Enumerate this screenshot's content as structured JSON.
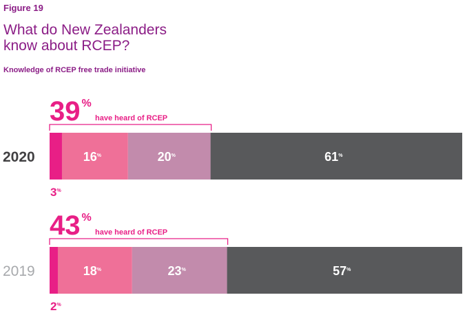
{
  "figure_label": "Figure 19",
  "figure_title_line1": "What do New Zealanders",
  "figure_title_line2": "know about RCEP?",
  "chart_title": "Knowledge of RCEP free trade initiative",
  "colors": {
    "segment_1": "#e81f86",
    "segment_2": "#ef7098",
    "segment_3": "#c28bac",
    "segment_4": "#58595b",
    "brand": "#8b1d86",
    "year_current": "#414042",
    "year_previous": "#a7a9ac"
  },
  "chart_data": {
    "type": "bar",
    "orientation": "horizontal",
    "stacked": true,
    "percent_sign": "%",
    "heard_text": "have heard of RCEP",
    "categories": [
      "2020",
      "2019"
    ],
    "series": [
      {
        "values": [
          3,
          2
        ]
      },
      {
        "values": [
          16,
          18
        ]
      },
      {
        "values": [
          20,
          23
        ]
      },
      {
        "values": [
          61,
          57
        ]
      }
    ],
    "heard_totals": [
      39,
      43
    ],
    "xlim": [
      0,
      100
    ]
  }
}
